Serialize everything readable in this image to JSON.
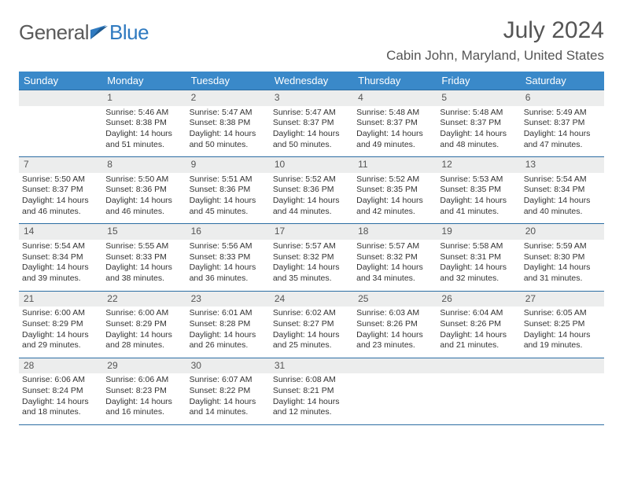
{
  "brand": {
    "part1": "General",
    "part2": "Blue"
  },
  "title": "July 2024",
  "location": "Cabin John, Maryland, United States",
  "colors": {
    "header_bg": "#3a89c9",
    "header_text": "#ffffff",
    "rule": "#2c6da3",
    "daynum_bg": "#eceded",
    "text": "#333333",
    "subtext": "#555555",
    "brand_blue": "#2f7ac0"
  },
  "columns": [
    "Sunday",
    "Monday",
    "Tuesday",
    "Wednesday",
    "Thursday",
    "Friday",
    "Saturday"
  ],
  "weeks": [
    [
      null,
      {
        "n": "1",
        "sr": "5:46 AM",
        "ss": "8:38 PM",
        "dl": "14 hours and 51 minutes."
      },
      {
        "n": "2",
        "sr": "5:47 AM",
        "ss": "8:38 PM",
        "dl": "14 hours and 50 minutes."
      },
      {
        "n": "3",
        "sr": "5:47 AM",
        "ss": "8:37 PM",
        "dl": "14 hours and 50 minutes."
      },
      {
        "n": "4",
        "sr": "5:48 AM",
        "ss": "8:37 PM",
        "dl": "14 hours and 49 minutes."
      },
      {
        "n": "5",
        "sr": "5:48 AM",
        "ss": "8:37 PM",
        "dl": "14 hours and 48 minutes."
      },
      {
        "n": "6",
        "sr": "5:49 AM",
        "ss": "8:37 PM",
        "dl": "14 hours and 47 minutes."
      }
    ],
    [
      {
        "n": "7",
        "sr": "5:50 AM",
        "ss": "8:37 PM",
        "dl": "14 hours and 46 minutes."
      },
      {
        "n": "8",
        "sr": "5:50 AM",
        "ss": "8:36 PM",
        "dl": "14 hours and 46 minutes."
      },
      {
        "n": "9",
        "sr": "5:51 AM",
        "ss": "8:36 PM",
        "dl": "14 hours and 45 minutes."
      },
      {
        "n": "10",
        "sr": "5:52 AM",
        "ss": "8:36 PM",
        "dl": "14 hours and 44 minutes."
      },
      {
        "n": "11",
        "sr": "5:52 AM",
        "ss": "8:35 PM",
        "dl": "14 hours and 42 minutes."
      },
      {
        "n": "12",
        "sr": "5:53 AM",
        "ss": "8:35 PM",
        "dl": "14 hours and 41 minutes."
      },
      {
        "n": "13",
        "sr": "5:54 AM",
        "ss": "8:34 PM",
        "dl": "14 hours and 40 minutes."
      }
    ],
    [
      {
        "n": "14",
        "sr": "5:54 AM",
        "ss": "8:34 PM",
        "dl": "14 hours and 39 minutes."
      },
      {
        "n": "15",
        "sr": "5:55 AM",
        "ss": "8:33 PM",
        "dl": "14 hours and 38 minutes."
      },
      {
        "n": "16",
        "sr": "5:56 AM",
        "ss": "8:33 PM",
        "dl": "14 hours and 36 minutes."
      },
      {
        "n": "17",
        "sr": "5:57 AM",
        "ss": "8:32 PM",
        "dl": "14 hours and 35 minutes."
      },
      {
        "n": "18",
        "sr": "5:57 AM",
        "ss": "8:32 PM",
        "dl": "14 hours and 34 minutes."
      },
      {
        "n": "19",
        "sr": "5:58 AM",
        "ss": "8:31 PM",
        "dl": "14 hours and 32 minutes."
      },
      {
        "n": "20",
        "sr": "5:59 AM",
        "ss": "8:30 PM",
        "dl": "14 hours and 31 minutes."
      }
    ],
    [
      {
        "n": "21",
        "sr": "6:00 AM",
        "ss": "8:29 PM",
        "dl": "14 hours and 29 minutes."
      },
      {
        "n": "22",
        "sr": "6:00 AM",
        "ss": "8:29 PM",
        "dl": "14 hours and 28 minutes."
      },
      {
        "n": "23",
        "sr": "6:01 AM",
        "ss": "8:28 PM",
        "dl": "14 hours and 26 minutes."
      },
      {
        "n": "24",
        "sr": "6:02 AM",
        "ss": "8:27 PM",
        "dl": "14 hours and 25 minutes."
      },
      {
        "n": "25",
        "sr": "6:03 AM",
        "ss": "8:26 PM",
        "dl": "14 hours and 23 minutes."
      },
      {
        "n": "26",
        "sr": "6:04 AM",
        "ss": "8:26 PM",
        "dl": "14 hours and 21 minutes."
      },
      {
        "n": "27",
        "sr": "6:05 AM",
        "ss": "8:25 PM",
        "dl": "14 hours and 19 minutes."
      }
    ],
    [
      {
        "n": "28",
        "sr": "6:06 AM",
        "ss": "8:24 PM",
        "dl": "14 hours and 18 minutes."
      },
      {
        "n": "29",
        "sr": "6:06 AM",
        "ss": "8:23 PM",
        "dl": "14 hours and 16 minutes."
      },
      {
        "n": "30",
        "sr": "6:07 AM",
        "ss": "8:22 PM",
        "dl": "14 hours and 14 minutes."
      },
      {
        "n": "31",
        "sr": "6:08 AM",
        "ss": "8:21 PM",
        "dl": "14 hours and 12 minutes."
      },
      null,
      null,
      null
    ]
  ],
  "labels": {
    "sunrise": "Sunrise:",
    "sunset": "Sunset:",
    "daylight": "Daylight:"
  }
}
